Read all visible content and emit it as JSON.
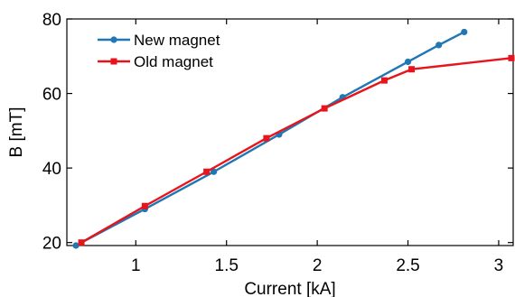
{
  "chart_data": {
    "type": "line",
    "xlabel": "Current [kA]",
    "ylabel": "B [mT]",
    "xlim": [
      0.62,
      3.08
    ],
    "ylim": [
      19.2,
      80
    ],
    "xticks": [
      1,
      1.5,
      2,
      2.5,
      3
    ],
    "xtick_labels": [
      "1",
      "1.5",
      "2",
      "2.5",
      "3"
    ],
    "yticks": [
      20,
      40,
      60,
      80
    ],
    "ytick_labels": [
      "20",
      "40",
      "60",
      "80"
    ],
    "legend_position": "top-left",
    "grid": false,
    "series": [
      {
        "name": "New magnet",
        "color": "#1f77b4",
        "marker": "circle",
        "x": [
          0.67,
          1.05,
          1.43,
          1.79,
          2.14,
          2.5,
          2.67,
          2.81
        ],
        "y": [
          19.2,
          29,
          39,
          49,
          59,
          68.5,
          73,
          76.5
        ]
      },
      {
        "name": "Old magnet",
        "color": "#e8141b",
        "marker": "square",
        "x": [
          0.7,
          1.05,
          1.39,
          1.72,
          2.04,
          2.37,
          2.52,
          3.07
        ],
        "y": [
          20,
          29.8,
          39,
          48,
          56,
          63.5,
          66.5,
          69.5
        ]
      }
    ]
  }
}
